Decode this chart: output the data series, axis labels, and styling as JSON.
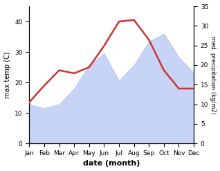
{
  "months": [
    "Jan",
    "Feb",
    "Mar",
    "Apr",
    "May",
    "Jun",
    "Jul",
    "Aug",
    "Sep",
    "Oct",
    "Nov",
    "Dec"
  ],
  "month_positions": [
    1,
    2,
    3,
    4,
    5,
    6,
    7,
    8,
    9,
    10,
    11,
    12
  ],
  "temp_line": [
    13.5,
    19,
    24,
    23,
    25,
    32,
    40,
    40.5,
    34,
    24,
    18,
    18
  ],
  "precipitation": [
    10,
    9,
    10,
    14,
    20,
    23,
    16,
    20,
    26,
    28,
    22,
    18
  ],
  "temp_ylim": [
    0,
    45
  ],
  "precip_ylim": [
    0,
    35
  ],
  "temp_yticks": [
    0,
    10,
    20,
    30,
    40
  ],
  "precip_yticks": [
    0,
    5,
    10,
    15,
    20,
    25,
    30,
    35
  ],
  "ylabel_left": "max temp (C)",
  "ylabel_right": "med. precipitation (kg/m2)",
  "xlabel": "date (month)",
  "line_color": "#cc3333",
  "fill_color": "#c8d4f5",
  "fill_edge_color": "#aabbee",
  "background_color": "#ffffff",
  "line_width": 1.8,
  "figsize": [
    3.18,
    2.47
  ],
  "dpi": 100
}
